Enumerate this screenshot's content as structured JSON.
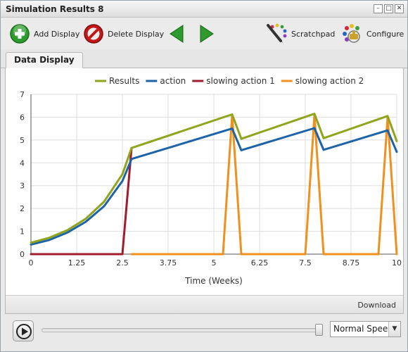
{
  "window": {
    "title": "Simulation Results 8"
  },
  "window_controls": {
    "minimize_glyph": "–",
    "maximize_glyph": "□",
    "close_glyph": "✕"
  },
  "toolbar": {
    "add_display": "Add Display",
    "delete_display": "Delete Display",
    "scratchpad": "Scratchpad",
    "configure": "Configure",
    "icons": [
      "plus-circle-icon",
      "no-entry-icon",
      "arrow-left-icon",
      "arrow-right-icon",
      "pencil-palette-icon",
      "palette-cog-icon"
    ]
  },
  "tabs": [
    {
      "label": "Data Display"
    }
  ],
  "panel": {
    "download_label": "Download"
  },
  "playback": {
    "speed_label": "Normal Speed",
    "position": 1.0
  },
  "colors": {
    "results": "#8fa51b",
    "action": "#1d63a8",
    "slowing_action_1": "#a01c2e",
    "slowing_action_2": "#f0901e"
  },
  "chart_data": {
    "type": "line",
    "xlabel": "Time (Weeks)",
    "ylabel": "",
    "xlim": [
      0,
      10
    ],
    "ylim": [
      0,
      7
    ],
    "xticks": [
      "0",
      "1.25",
      "2.5",
      "3.75",
      "5",
      "6.25",
      "7.5",
      "8.75",
      "10"
    ],
    "yticks": [
      "0",
      "1",
      "2",
      "3",
      "4",
      "5",
      "6",
      "7"
    ],
    "grid": true,
    "legend": "top-center",
    "series": [
      {
        "name": "Results",
        "color": "#8fa51b",
        "x": [
          0,
          0.5,
          1.0,
          1.5,
          2.0,
          2.5,
          2.75,
          5.5,
          5.75,
          7.75,
          8.0,
          9.75,
          10.0
        ],
        "y": [
          0.5,
          0.72,
          1.05,
          1.55,
          2.3,
          3.5,
          4.65,
          6.12,
          5.05,
          6.15,
          5.08,
          6.05,
          4.95
        ]
      },
      {
        "name": "action",
        "color": "#1d63a8",
        "x": [
          0,
          0.5,
          1.0,
          1.5,
          2.0,
          2.5,
          2.75,
          5.5,
          5.75,
          7.75,
          8.0,
          9.75,
          10.0
        ],
        "y": [
          0.42,
          0.62,
          0.95,
          1.42,
          2.1,
          3.2,
          4.17,
          5.5,
          4.55,
          5.52,
          4.57,
          5.42,
          4.48
        ]
      },
      {
        "name": "slowing action 1",
        "color": "#a01c2e",
        "x": [
          0,
          2.5,
          2.75
        ],
        "y": [
          0,
          0,
          4.65
        ]
      },
      {
        "name": "slowing action 2",
        "color": "#f0901e",
        "x": [
          2.75,
          5.25,
          5.5,
          5.75,
          7.5,
          7.75,
          8.0,
          9.5,
          9.75,
          10.0
        ],
        "y": [
          0,
          0,
          6.1,
          0,
          0,
          6.1,
          0,
          0,
          6.0,
          0
        ]
      }
    ]
  }
}
